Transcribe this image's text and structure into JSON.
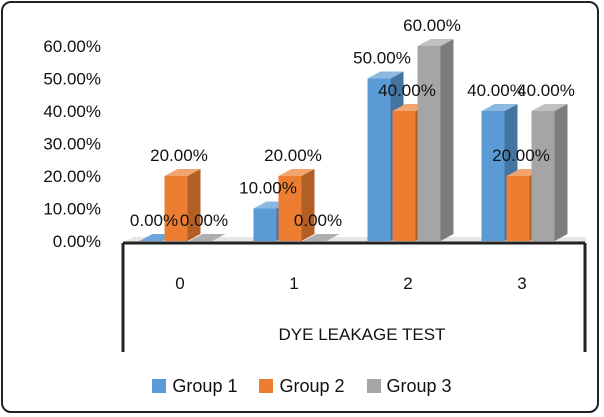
{
  "chart_data": {
    "type": "bar",
    "style": "3d-clustered-column",
    "categories": [
      "0",
      "1",
      "2",
      "3"
    ],
    "series": [
      {
        "name": "Group 1",
        "values": [
          0.0,
          10.0,
          50.0,
          40.0
        ],
        "labels": [
          "0.00%",
          "10.00%",
          "50.00%",
          "40.00%"
        ]
      },
      {
        "name": "Group 2",
        "values": [
          20.0,
          20.0,
          40.0,
          20.0
        ],
        "labels": [
          "20.00%",
          "20.00%",
          "40.00%",
          "20.00%"
        ]
      },
      {
        "name": "Group 3",
        "values": [
          0.0,
          0.0,
          60.0,
          40.0
        ],
        "labels": [
          "0.00%",
          "0.00%",
          "60.00%",
          "40.00%"
        ]
      }
    ],
    "xlabel": "DYE LEAKAGE TEST",
    "ylabel": "",
    "ylim": [
      0,
      60
    ],
    "yticks": [
      "0.00%",
      "10.00%",
      "20.00%",
      "30.00%",
      "40.00%",
      "50.00%",
      "60.00%"
    ],
    "legend_position": "bottom",
    "grid": false,
    "colors": {
      "Group 1": "#5b9bd5",
      "Group 2": "#ed7d31",
      "Group 3": "#a5a5a5"
    }
  }
}
